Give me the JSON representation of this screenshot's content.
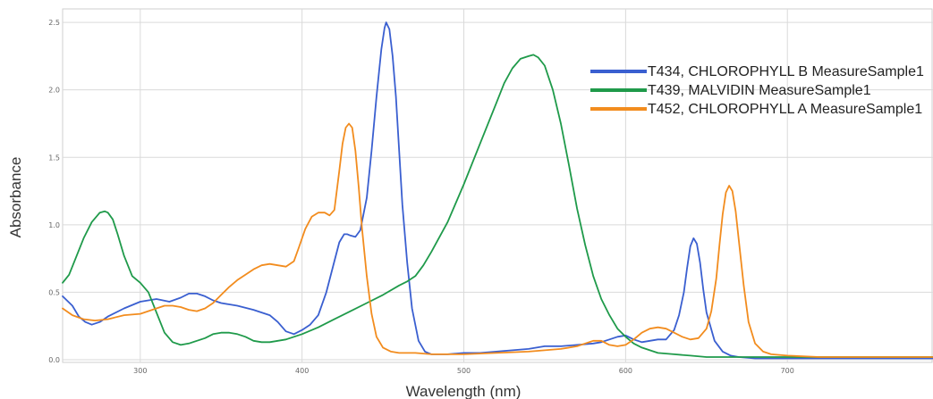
{
  "chart_data": {
    "type": "line",
    "title": "",
    "xlabel": "Wavelength (nm)",
    "ylabel": "Absorbance",
    "xlim": [
      252,
      790
    ],
    "ylim": [
      -0.02,
      2.6
    ],
    "grid": true,
    "legend": "top-right",
    "x_ticks": [
      300,
      400,
      500,
      600,
      700
    ],
    "x_tick_labels": [
      "300",
      "400",
      "500",
      "600",
      "700"
    ],
    "y_ticks": [
      0.0,
      0.5,
      1.0,
      1.5,
      2.0,
      2.5
    ],
    "y_tick_labels": [
      "0.0",
      "0.5",
      "1.0",
      "1.5",
      "2.0",
      "2.5"
    ],
    "series": [
      {
        "name": "T434, CHLOROPHYLL B MeasureSample1",
        "color": "#3a5fd0",
        "x": [
          252,
          258,
          262,
          266,
          270,
          275,
          280,
          290,
          300,
          310,
          318,
          325,
          330,
          335,
          340,
          345,
          350,
          355,
          360,
          370,
          380,
          385,
          390,
          395,
          400,
          405,
          410,
          415,
          420,
          423,
          426,
          428,
          430,
          433,
          436,
          440,
          443,
          446,
          449,
          451,
          452,
          454,
          456,
          458,
          460,
          462,
          465,
          468,
          472,
          476,
          480,
          485,
          490,
          500,
          510,
          520,
          530,
          540,
          550,
          560,
          570,
          580,
          585,
          590,
          595,
          600,
          605,
          610,
          615,
          620,
          625,
          630,
          633,
          636,
          638,
          640,
          642,
          644,
          646,
          648,
          650,
          655,
          660,
          665,
          670,
          680,
          700,
          720,
          750,
          790
        ],
        "y": [
          0.47,
          0.4,
          0.32,
          0.28,
          0.26,
          0.28,
          0.32,
          0.38,
          0.43,
          0.45,
          0.43,
          0.46,
          0.49,
          0.49,
          0.47,
          0.44,
          0.42,
          0.41,
          0.4,
          0.37,
          0.33,
          0.28,
          0.21,
          0.19,
          0.22,
          0.26,
          0.33,
          0.5,
          0.73,
          0.87,
          0.93,
          0.93,
          0.92,
          0.91,
          0.96,
          1.2,
          1.55,
          1.95,
          2.3,
          2.46,
          2.5,
          2.45,
          2.25,
          1.95,
          1.55,
          1.15,
          0.72,
          0.38,
          0.14,
          0.06,
          0.04,
          0.04,
          0.04,
          0.05,
          0.05,
          0.06,
          0.07,
          0.08,
          0.1,
          0.1,
          0.11,
          0.12,
          0.13,
          0.15,
          0.17,
          0.18,
          0.15,
          0.13,
          0.14,
          0.15,
          0.15,
          0.22,
          0.33,
          0.5,
          0.68,
          0.84,
          0.9,
          0.86,
          0.72,
          0.52,
          0.35,
          0.14,
          0.06,
          0.03,
          0.02,
          0.01,
          0.01,
          0.01,
          0.01,
          0.01
        ]
      },
      {
        "name": "T439, MALVIDIN MeasureSample1",
        "color": "#1f9a4a",
        "x": [
          252,
          256,
          260,
          265,
          270,
          275,
          278,
          280,
          283,
          286,
          290,
          295,
          300,
          305,
          310,
          315,
          320,
          325,
          330,
          335,
          340,
          345,
          350,
          355,
          360,
          365,
          370,
          375,
          380,
          390,
          400,
          410,
          420,
          430,
          440,
          450,
          460,
          465,
          470,
          475,
          480,
          490,
          500,
          510,
          520,
          525,
          530,
          535,
          540,
          543,
          546,
          550,
          555,
          560,
          565,
          570,
          575,
          580,
          585,
          590,
          595,
          600,
          605,
          610,
          620,
          630,
          640,
          650,
          660,
          670,
          680,
          700,
          720,
          750,
          790
        ],
        "y": [
          0.57,
          0.63,
          0.75,
          0.9,
          1.02,
          1.09,
          1.1,
          1.09,
          1.04,
          0.93,
          0.77,
          0.62,
          0.57,
          0.5,
          0.35,
          0.2,
          0.13,
          0.11,
          0.12,
          0.14,
          0.16,
          0.19,
          0.2,
          0.2,
          0.19,
          0.17,
          0.14,
          0.13,
          0.13,
          0.15,
          0.19,
          0.24,
          0.3,
          0.36,
          0.42,
          0.48,
          0.55,
          0.58,
          0.62,
          0.7,
          0.8,
          1.02,
          1.3,
          1.6,
          1.9,
          2.05,
          2.16,
          2.23,
          2.25,
          2.26,
          2.24,
          2.18,
          2.0,
          1.75,
          1.44,
          1.12,
          0.85,
          0.62,
          0.45,
          0.33,
          0.23,
          0.17,
          0.12,
          0.09,
          0.05,
          0.04,
          0.03,
          0.02,
          0.02,
          0.02,
          0.02,
          0.02,
          0.02,
          0.02,
          0.02
        ]
      },
      {
        "name": "T452, CHLOROPHYLL A MeasureSample1",
        "color": "#f28c1e",
        "x": [
          252,
          258,
          265,
          272,
          280,
          290,
          300,
          310,
          315,
          320,
          325,
          330,
          335,
          340,
          345,
          350,
          355,
          360,
          365,
          370,
          375,
          380,
          385,
          390,
          395,
          398,
          402,
          406,
          410,
          414,
          417,
          420,
          423,
          425,
          427,
          429,
          431,
          433,
          435,
          437,
          440,
          443,
          446,
          450,
          455,
          460,
          470,
          480,
          500,
          520,
          540,
          550,
          560,
          570,
          575,
          580,
          585,
          590,
          595,
          600,
          605,
          610,
          615,
          620,
          625,
          630,
          635,
          640,
          645,
          650,
          653,
          656,
          658,
          660,
          662,
          664,
          666,
          668,
          670,
          673,
          676,
          680,
          685,
          690,
          700,
          720,
          750,
          790
        ],
        "y": [
          0.38,
          0.33,
          0.3,
          0.29,
          0.3,
          0.33,
          0.34,
          0.38,
          0.4,
          0.4,
          0.39,
          0.37,
          0.36,
          0.38,
          0.42,
          0.48,
          0.54,
          0.59,
          0.63,
          0.67,
          0.7,
          0.71,
          0.7,
          0.69,
          0.73,
          0.83,
          0.97,
          1.06,
          1.09,
          1.09,
          1.07,
          1.11,
          1.4,
          1.6,
          1.72,
          1.75,
          1.72,
          1.55,
          1.28,
          0.98,
          0.62,
          0.34,
          0.17,
          0.09,
          0.06,
          0.05,
          0.05,
          0.04,
          0.04,
          0.05,
          0.06,
          0.07,
          0.08,
          0.1,
          0.12,
          0.14,
          0.14,
          0.11,
          0.1,
          0.11,
          0.15,
          0.2,
          0.23,
          0.24,
          0.23,
          0.2,
          0.17,
          0.15,
          0.16,
          0.23,
          0.36,
          0.6,
          0.85,
          1.08,
          1.24,
          1.29,
          1.25,
          1.1,
          0.88,
          0.55,
          0.28,
          0.12,
          0.06,
          0.04,
          0.03,
          0.02,
          0.02,
          0.02
        ]
      }
    ]
  }
}
